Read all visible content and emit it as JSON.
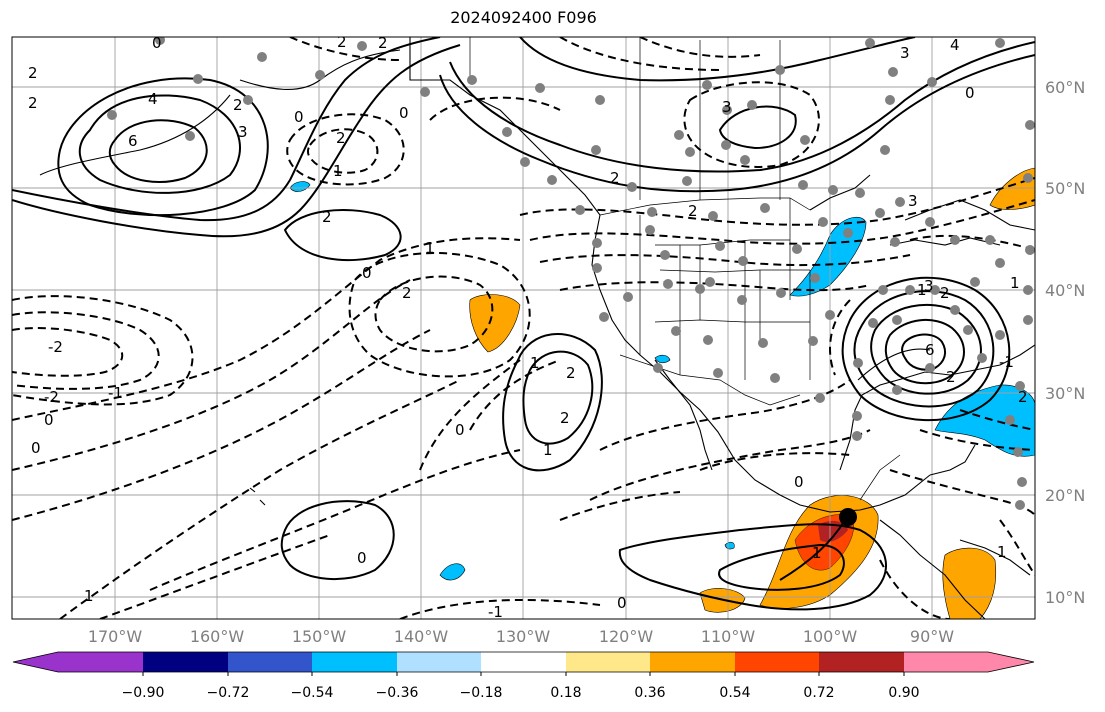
{
  "title": "2024092400 F096",
  "lat_labels": [
    "60°N",
    "50°N",
    "40°N",
    "30°N",
    "20°N",
    "10°N"
  ],
  "lon_labels": [
    "170°W",
    "160°W",
    "150°W",
    "140°W",
    "130°W",
    "120°W",
    "110°W",
    "100°W",
    "90°W"
  ],
  "colorbar": {
    "ticks": [
      "−0.90",
      "−0.72",
      "−0.54",
      "−0.36",
      "−0.18",
      "0.18",
      "0.36",
      "0.54",
      "0.72",
      "0.90"
    ],
    "colors": [
      "#9933cc",
      "#000080",
      "#3355cc",
      "#00bfff",
      "#b0e0ff",
      "#ffffff",
      "#ffe88a",
      "#ffa500",
      "#ff4500",
      "#b22222",
      "#ff88aa"
    ]
  },
  "contour_labels": [
    "2",
    "2",
    "0",
    "2",
    "4",
    "6",
    "3",
    "2",
    "0",
    "2",
    "1",
    "2",
    "0",
    "2",
    "3",
    "4",
    "2",
    "1",
    "0",
    "2",
    "2",
    "2",
    "3",
    "3",
    "6",
    "1",
    "2",
    "1",
    "0",
    "2",
    "-2",
    "-2",
    "0",
    "0",
    "-1",
    "-1",
    "1",
    "1",
    "-1",
    "0",
    "0",
    "2",
    "3",
    "2",
    "1",
    "0",
    "1",
    "1",
    "0"
  ]
}
